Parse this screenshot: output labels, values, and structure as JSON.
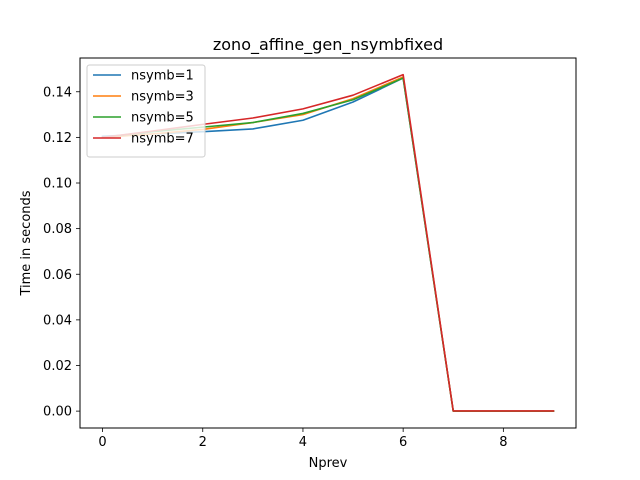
{
  "chart_data": {
    "type": "line",
    "title": "zono_affine_gen_nsymbfixed",
    "xlabel": "Nprev",
    "ylabel": "Time in seconds",
    "x": [
      0,
      1,
      2,
      3,
      4,
      5,
      6,
      7,
      8,
      9
    ],
    "xlim": [
      -0.45,
      9.45
    ],
    "ylim": [
      -0.0074,
      0.1548
    ],
    "xticks": [
      0,
      2,
      4,
      6,
      8
    ],
    "xtick_labels": [
      "0",
      "2",
      "4",
      "6",
      "8"
    ],
    "yticks": [
      0.0,
      0.02,
      0.04,
      0.06,
      0.08,
      0.1,
      0.12,
      0.14
    ],
    "ytick_labels": [
      "0.00",
      "0.02",
      "0.04",
      "0.06",
      "0.08",
      "0.10",
      "0.12",
      "0.14"
    ],
    "grid": false,
    "legend_position": "upper left",
    "series": [
      {
        "name": "nsymb=1",
        "color": "#1f77b4",
        "values": [
          0.1205,
          0.1215,
          0.1225,
          0.1237,
          0.1275,
          0.1355,
          0.146,
          0.0,
          0.0,
          0.0
        ]
      },
      {
        "name": "nsymb=3",
        "color": "#ff7f0e",
        "values": [
          0.12,
          0.1215,
          0.1235,
          0.1265,
          0.13,
          0.137,
          0.1465,
          0.0,
          0.0,
          0.0
        ]
      },
      {
        "name": "nsymb=5",
        "color": "#2ca02c",
        "values": [
          0.12,
          0.1225,
          0.1245,
          0.1265,
          0.1305,
          0.1365,
          0.146,
          0.0,
          0.0,
          0.0
        ]
      },
      {
        "name": "nsymb=7",
        "color": "#d62728",
        "values": [
          0.12,
          0.1228,
          0.1257,
          0.1285,
          0.1325,
          0.1385,
          0.1475,
          0.0001,
          0.0001,
          0.0001
        ]
      }
    ]
  }
}
